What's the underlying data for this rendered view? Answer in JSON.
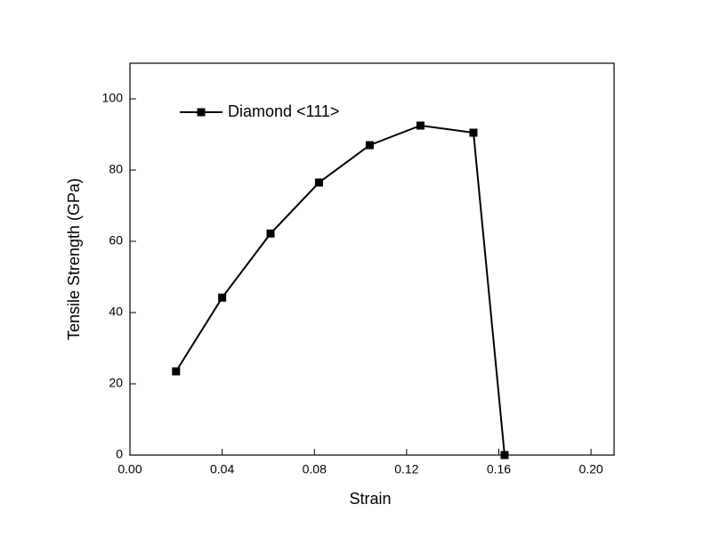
{
  "chart_data": {
    "type": "line",
    "xlabel": "Strain",
    "ylabel": "Tensile Strength (GPa)",
    "x": [
      0.02,
      0.04,
      0.061,
      0.082,
      0.104,
      0.126,
      0.149,
      0.1625
    ],
    "series": [
      {
        "name": "Diamond <111>",
        "color": "#000000",
        "values": [
          23.5,
          44.2,
          62.2,
          76.5,
          87,
          92.5,
          90.5,
          0
        ]
      }
    ],
    "xlim": [
      0,
      0.21
    ],
    "ylim": [
      0,
      110
    ],
    "xticks": [
      {
        "value": 0,
        "label": "0.00"
      },
      {
        "value": 0.04,
        "label": "0.04"
      },
      {
        "value": 0.08,
        "label": "0.08"
      },
      {
        "value": 0.12,
        "label": "0.12"
      },
      {
        "value": 0.16,
        "label": "0.16"
      },
      {
        "value": 0.2,
        "label": "0.20"
      }
    ],
    "yticks": [
      0,
      20,
      40,
      60,
      80,
      100
    ],
    "legend": "upper left",
    "grid": false
  }
}
